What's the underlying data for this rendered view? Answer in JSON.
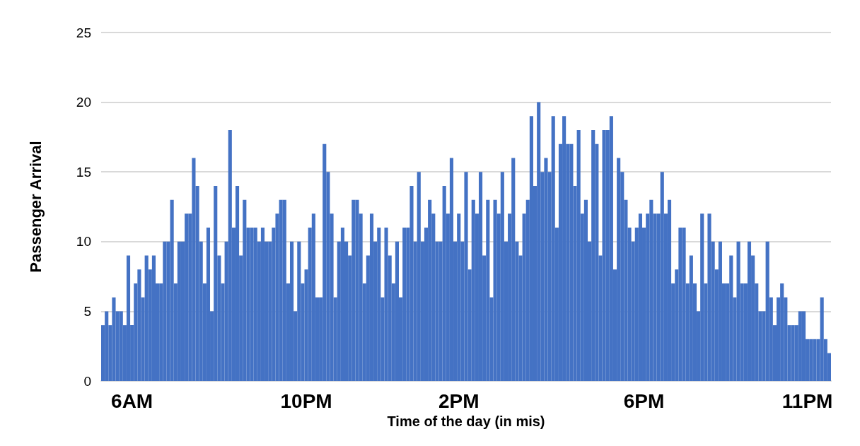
{
  "chart_data": {
    "type": "bar",
    "xlabel": "Time of the day (in mis)",
    "ylabel": "Passenger Arrival",
    "color": "#4472c4",
    "categories": [
      null,
      null,
      null,
      null,
      null,
      null,
      null,
      null,
      "6AM",
      null,
      null,
      null,
      null,
      null,
      null,
      null,
      null,
      null,
      null,
      null,
      null,
      null,
      null,
      null,
      null,
      null,
      null,
      null,
      null,
      null,
      null,
      null,
      null,
      null,
      null,
      null,
      null,
      null,
      null,
      null,
      null,
      null,
      null,
      null,
      null,
      null,
      null,
      null,
      null,
      null,
      null,
      null,
      null,
      null,
      null,
      null,
      "10PM",
      null,
      null,
      null,
      null,
      null,
      null,
      null,
      null,
      null,
      null,
      null,
      null,
      null,
      null,
      null,
      null,
      null,
      null,
      null,
      null,
      null,
      null,
      null,
      null,
      null,
      null,
      null,
      null,
      null,
      null,
      null,
      null,
      null,
      null,
      null,
      null,
      null,
      null,
      null,
      null,
      null,
      "2PM",
      null,
      null,
      null,
      null,
      null,
      null,
      null,
      null,
      null,
      null,
      null,
      null,
      null,
      null,
      null,
      null,
      null,
      null,
      null,
      null,
      null,
      null,
      null,
      null,
      null,
      null,
      null,
      null,
      null,
      null,
      null,
      null,
      null,
      null,
      null,
      null,
      null,
      null,
      null,
      null,
      null,
      null,
      null,
      null,
      null,
      null,
      null,
      null,
      null,
      null,
      "6PM",
      null,
      null,
      null,
      null,
      null,
      null,
      null,
      null,
      null,
      null,
      null,
      null,
      null,
      null,
      null,
      null,
      null,
      null,
      null,
      null,
      null,
      null,
      null,
      null,
      null,
      null,
      null,
      null,
      null,
      null,
      null,
      null,
      null,
      null,
      null,
      null,
      null,
      null,
      null,
      null,
      null,
      null,
      null,
      null,
      "11PM",
      null,
      null,
      null,
      null,
      null,
      null
    ],
    "values": [
      4,
      5,
      4,
      6,
      5,
      5,
      4,
      9,
      4,
      7,
      8,
      6,
      9,
      8,
      9,
      7,
      7,
      10,
      10,
      13,
      7,
      10,
      10,
      12,
      12,
      16,
      14,
      10,
      7,
      11,
      5,
      14,
      9,
      7,
      10,
      18,
      11,
      14,
      9,
      13,
      11,
      11,
      11,
      10,
      11,
      10,
      10,
      11,
      12,
      13,
      13,
      7,
      10,
      5,
      10,
      7,
      8,
      11,
      12,
      6,
      6,
      17,
      15,
      12,
      6,
      10,
      11,
      10,
      9,
      13,
      13,
      12,
      7,
      9,
      12,
      10,
      11,
      6,
      11,
      9,
      7,
      10,
      6,
      11,
      11,
      14,
      10,
      15,
      10,
      11,
      13,
      12,
      10,
      10,
      14,
      12,
      16,
      10,
      12,
      10,
      15,
      8,
      13,
      12,
      15,
      9,
      13,
      6,
      13,
      12,
      15,
      10,
      12,
      16,
      10,
      9,
      12,
      13,
      19,
      14,
      20,
      15,
      16,
      15,
      19,
      11,
      17,
      19,
      17,
      17,
      14,
      18,
      12,
      13,
      10,
      18,
      17,
      9,
      18,
      18,
      19,
      8,
      16,
      15,
      13,
      11,
      10,
      11,
      12,
      11,
      12,
      13,
      12,
      12,
      15,
      12,
      13,
      7,
      8,
      11,
      11,
      7,
      9,
      7,
      5,
      12,
      7,
      12,
      10,
      8,
      10,
      7,
      7,
      9,
      6,
      10,
      7,
      7,
      10,
      9,
      7,
      5,
      5,
      10,
      6,
      4,
      6,
      7,
      6,
      4,
      4,
      4,
      5,
      5,
      3,
      3,
      3,
      3,
      6,
      3,
      2
    ],
    "ylim": [
      0,
      25
    ],
    "yticks": [
      0,
      5,
      10,
      15,
      20,
      25
    ],
    "grid": "y"
  }
}
